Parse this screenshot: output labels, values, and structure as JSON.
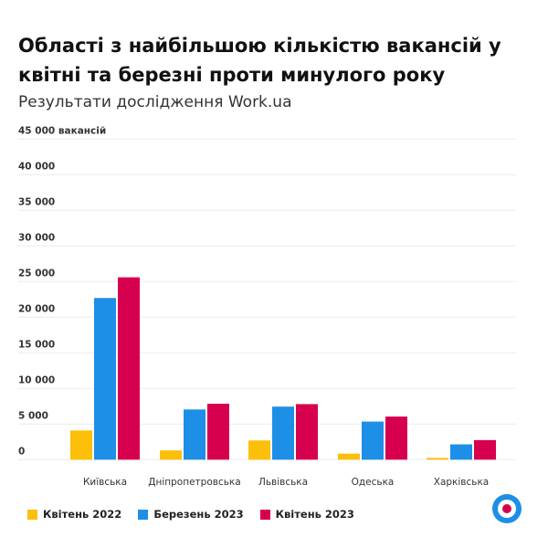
{
  "chart_data": {
    "type": "bar",
    "title": "Області з найбільшою кількістю вакансій у квітні та березні проти минулого року",
    "subtitle": "Результати дослідження Work.ua",
    "ylabel_unit": "вакансій",
    "categories": [
      "Київська",
      "Дніпропетровська",
      "Львівська",
      "Одеська",
      "Харківська"
    ],
    "series": [
      {
        "name": "Квітень 2022",
        "color": "#fcbf0a",
        "values": [
          4100,
          1300,
          2700,
          850,
          250
        ]
      },
      {
        "name": "Березень 2023",
        "color": "#1e8fe6",
        "values": [
          22700,
          7050,
          7450,
          5350,
          2150
        ]
      },
      {
        "name": "Квітень 2023",
        "color": "#d6004f",
        "values": [
          25600,
          7850,
          7800,
          6050,
          2750
        ]
      }
    ],
    "yticks": [
      "0",
      "5 000",
      "10 000",
      "15 000",
      "20 000",
      "25 000",
      "30 000",
      "35 000",
      "40 000",
      "45 000 вакансій"
    ],
    "ylim": [
      0,
      45000
    ],
    "grid": true,
    "legend_position": "bottom-left"
  }
}
